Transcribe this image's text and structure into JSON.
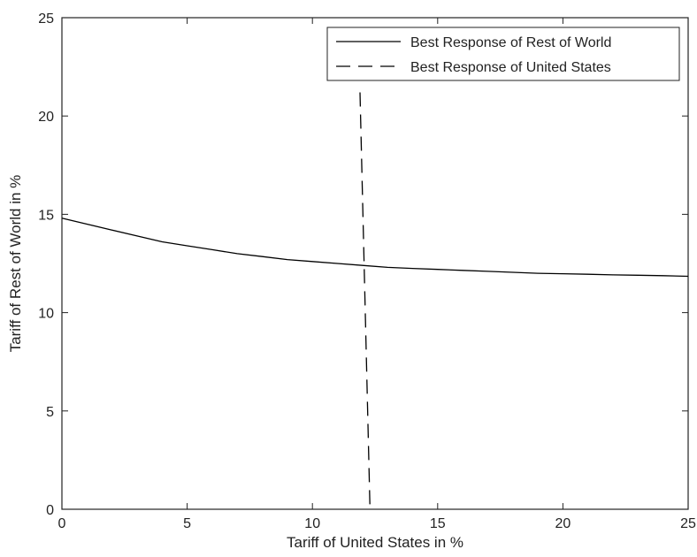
{
  "chart_data": {
    "type": "line",
    "xlabel": "Tariff of United States in %",
    "ylabel": "Tariff of Rest of World in %",
    "xlim": [
      0,
      25
    ],
    "ylim": [
      0,
      25
    ],
    "xticks": [
      0,
      5,
      10,
      15,
      20,
      25
    ],
    "yticks": [
      0,
      5,
      10,
      15,
      20,
      25
    ],
    "grid": false,
    "legend_position": "top-right",
    "series": [
      {
        "name": "Best Response of Rest of World",
        "style": "solid",
        "color": "#000000",
        "x": [
          0,
          1,
          2,
          3,
          4,
          5,
          6,
          7,
          8,
          9,
          10,
          11,
          12,
          13,
          14,
          15,
          16,
          17,
          18,
          19,
          20,
          21,
          22,
          23,
          24,
          25
        ],
        "y": [
          14.8,
          14.5,
          14.2,
          13.9,
          13.6,
          13.4,
          13.2,
          13.0,
          12.85,
          12.7,
          12.6,
          12.5,
          12.4,
          12.3,
          12.25,
          12.2,
          12.15,
          12.1,
          12.05,
          12.0,
          11.98,
          11.95,
          11.92,
          11.9,
          11.88,
          11.85
        ]
      },
      {
        "name": "Best Response of United States",
        "style": "dashed",
        "color": "#000000",
        "x": [
          11.9,
          12.3
        ],
        "y": [
          21.2,
          0
        ]
      }
    ]
  }
}
